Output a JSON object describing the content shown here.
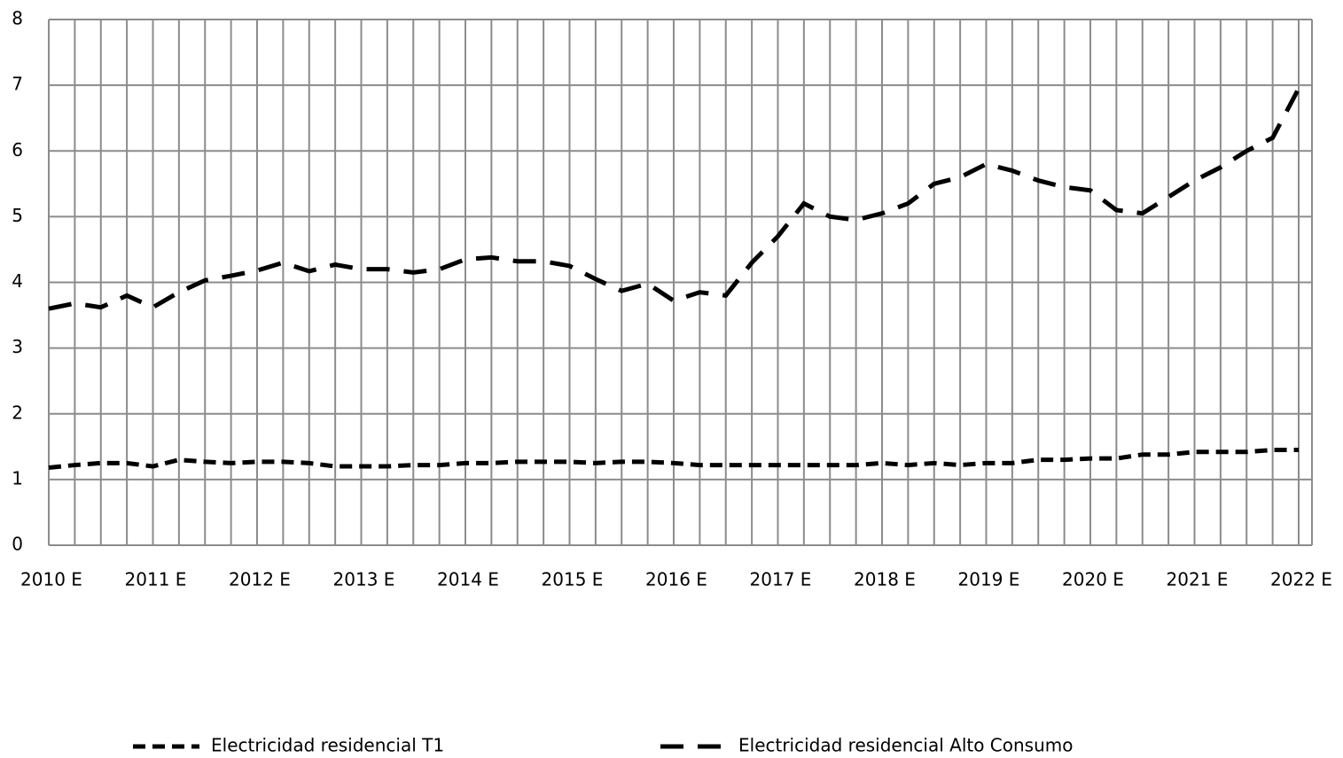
{
  "chart_data": {
    "type": "line",
    "categories": [
      "2010 E",
      null,
      null,
      null,
      "2011 E",
      null,
      null,
      null,
      "2012 E",
      null,
      null,
      null,
      "2013 E",
      null,
      null,
      null,
      "2014 E",
      null,
      null,
      null,
      "2015 E",
      null,
      null,
      null,
      "2016 E",
      null,
      null,
      null,
      "2017 E",
      null,
      null,
      null,
      "2018 E",
      null,
      null,
      null,
      "2019 E",
      null,
      null,
      null,
      "2020 E",
      null,
      null,
      null,
      "2021 E",
      null,
      null,
      null,
      "2022 E"
    ],
    "series": [
      {
        "name": "Electricidad residencial T1",
        "color": "#000000",
        "dash": "14,8",
        "values": [
          1.18,
          1.22,
          1.25,
          1.25,
          1.2,
          1.3,
          1.27,
          1.25,
          1.27,
          1.27,
          1.25,
          1.2,
          1.2,
          1.2,
          1.22,
          1.22,
          1.25,
          1.25,
          1.27,
          1.27,
          1.27,
          1.25,
          1.27,
          1.27,
          1.25,
          1.22,
          1.22,
          1.22,
          1.22,
          1.22,
          1.22,
          1.22,
          1.25,
          1.22,
          1.25,
          1.22,
          1.25,
          1.25,
          1.3,
          1.3,
          1.32,
          1.32,
          1.38,
          1.38,
          1.42,
          1.42,
          1.42,
          1.45,
          1.45
        ]
      },
      {
        "name": "Electricidad residencial Alto Consumo",
        "color": "#000000",
        "dash": "26,16",
        "values": [
          3.6,
          3.68,
          3.62,
          3.8,
          3.62,
          3.85,
          4.03,
          4.1,
          4.18,
          4.3,
          4.17,
          4.27,
          4.2,
          4.2,
          4.15,
          4.2,
          4.35,
          4.38,
          4.32,
          4.32,
          4.25,
          4.05,
          3.87,
          3.98,
          3.72,
          3.85,
          3.8,
          4.3,
          4.7,
          5.2,
          5.0,
          4.95,
          5.05,
          5.2,
          5.5,
          5.6,
          5.8,
          5.7,
          5.55,
          5.45,
          5.4,
          5.1,
          5.05,
          5.3,
          5.55,
          5.75,
          6.0,
          6.2,
          6.95
        ]
      }
    ],
    "ylim": [
      0,
      8
    ],
    "yticks": [
      0,
      1,
      2,
      3,
      4,
      5,
      6,
      7,
      8
    ],
    "grid": true,
    "legend": "bottom"
  }
}
